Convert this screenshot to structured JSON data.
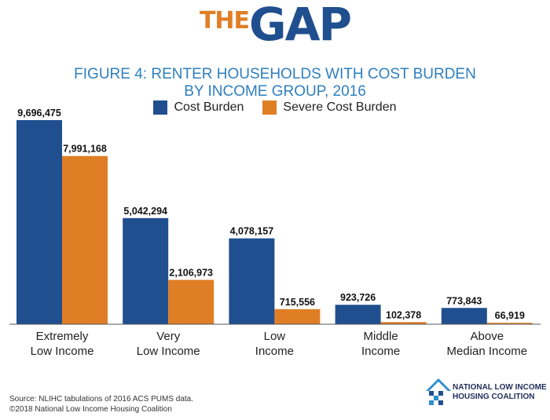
{
  "logo": {
    "the": "THE",
    "gap": "GAP"
  },
  "title_line1": "FIGURE 4: RENTER HOUSEHOLDS WITH COST BURDEN",
  "title_line2": "BY INCOME GROUP, 2016",
  "colors": {
    "cost_burden": "#1f4f8f",
    "severe_cost_burden": "#e07e26",
    "title": "#2e7fbf"
  },
  "chart_data": {
    "type": "bar",
    "title": "FIGURE 4: RENTER HOUSEHOLDS WITH COST BURDEN BY INCOME GROUP, 2016",
    "categories": [
      [
        "Extremely",
        "Low Income"
      ],
      [
        "Very",
        "Low Income"
      ],
      [
        "Low",
        "Income"
      ],
      [
        "Middle",
        "Income"
      ],
      [
        "Above",
        "Median Income"
      ]
    ],
    "series": [
      {
        "name": "Cost Burden",
        "values": [
          9696475,
          5042294,
          4078157,
          923726,
          773843
        ],
        "labels": [
          "9,696,475",
          "5,042,294",
          "4,078,157",
          "923,726",
          "773,843"
        ]
      },
      {
        "name": "Severe Cost Burden",
        "values": [
          7991168,
          2106973,
          715556,
          102378,
          66919
        ],
        "labels": [
          "7,991,168",
          "2,106,973",
          "715,556",
          "102,378",
          "66,919"
        ]
      }
    ],
    "ylim": [
      0,
      9696475
    ],
    "legend_position": "top-center",
    "grid": false
  },
  "footer": {
    "source": "Source: NLIHC tabulations of 2016 ACS PUMS data.",
    "copyright": "©2018 National Low Income Housing Coalition"
  },
  "org": {
    "line1": "NATIONAL LOW INCOME",
    "line2": "HOUSING COALITION"
  }
}
